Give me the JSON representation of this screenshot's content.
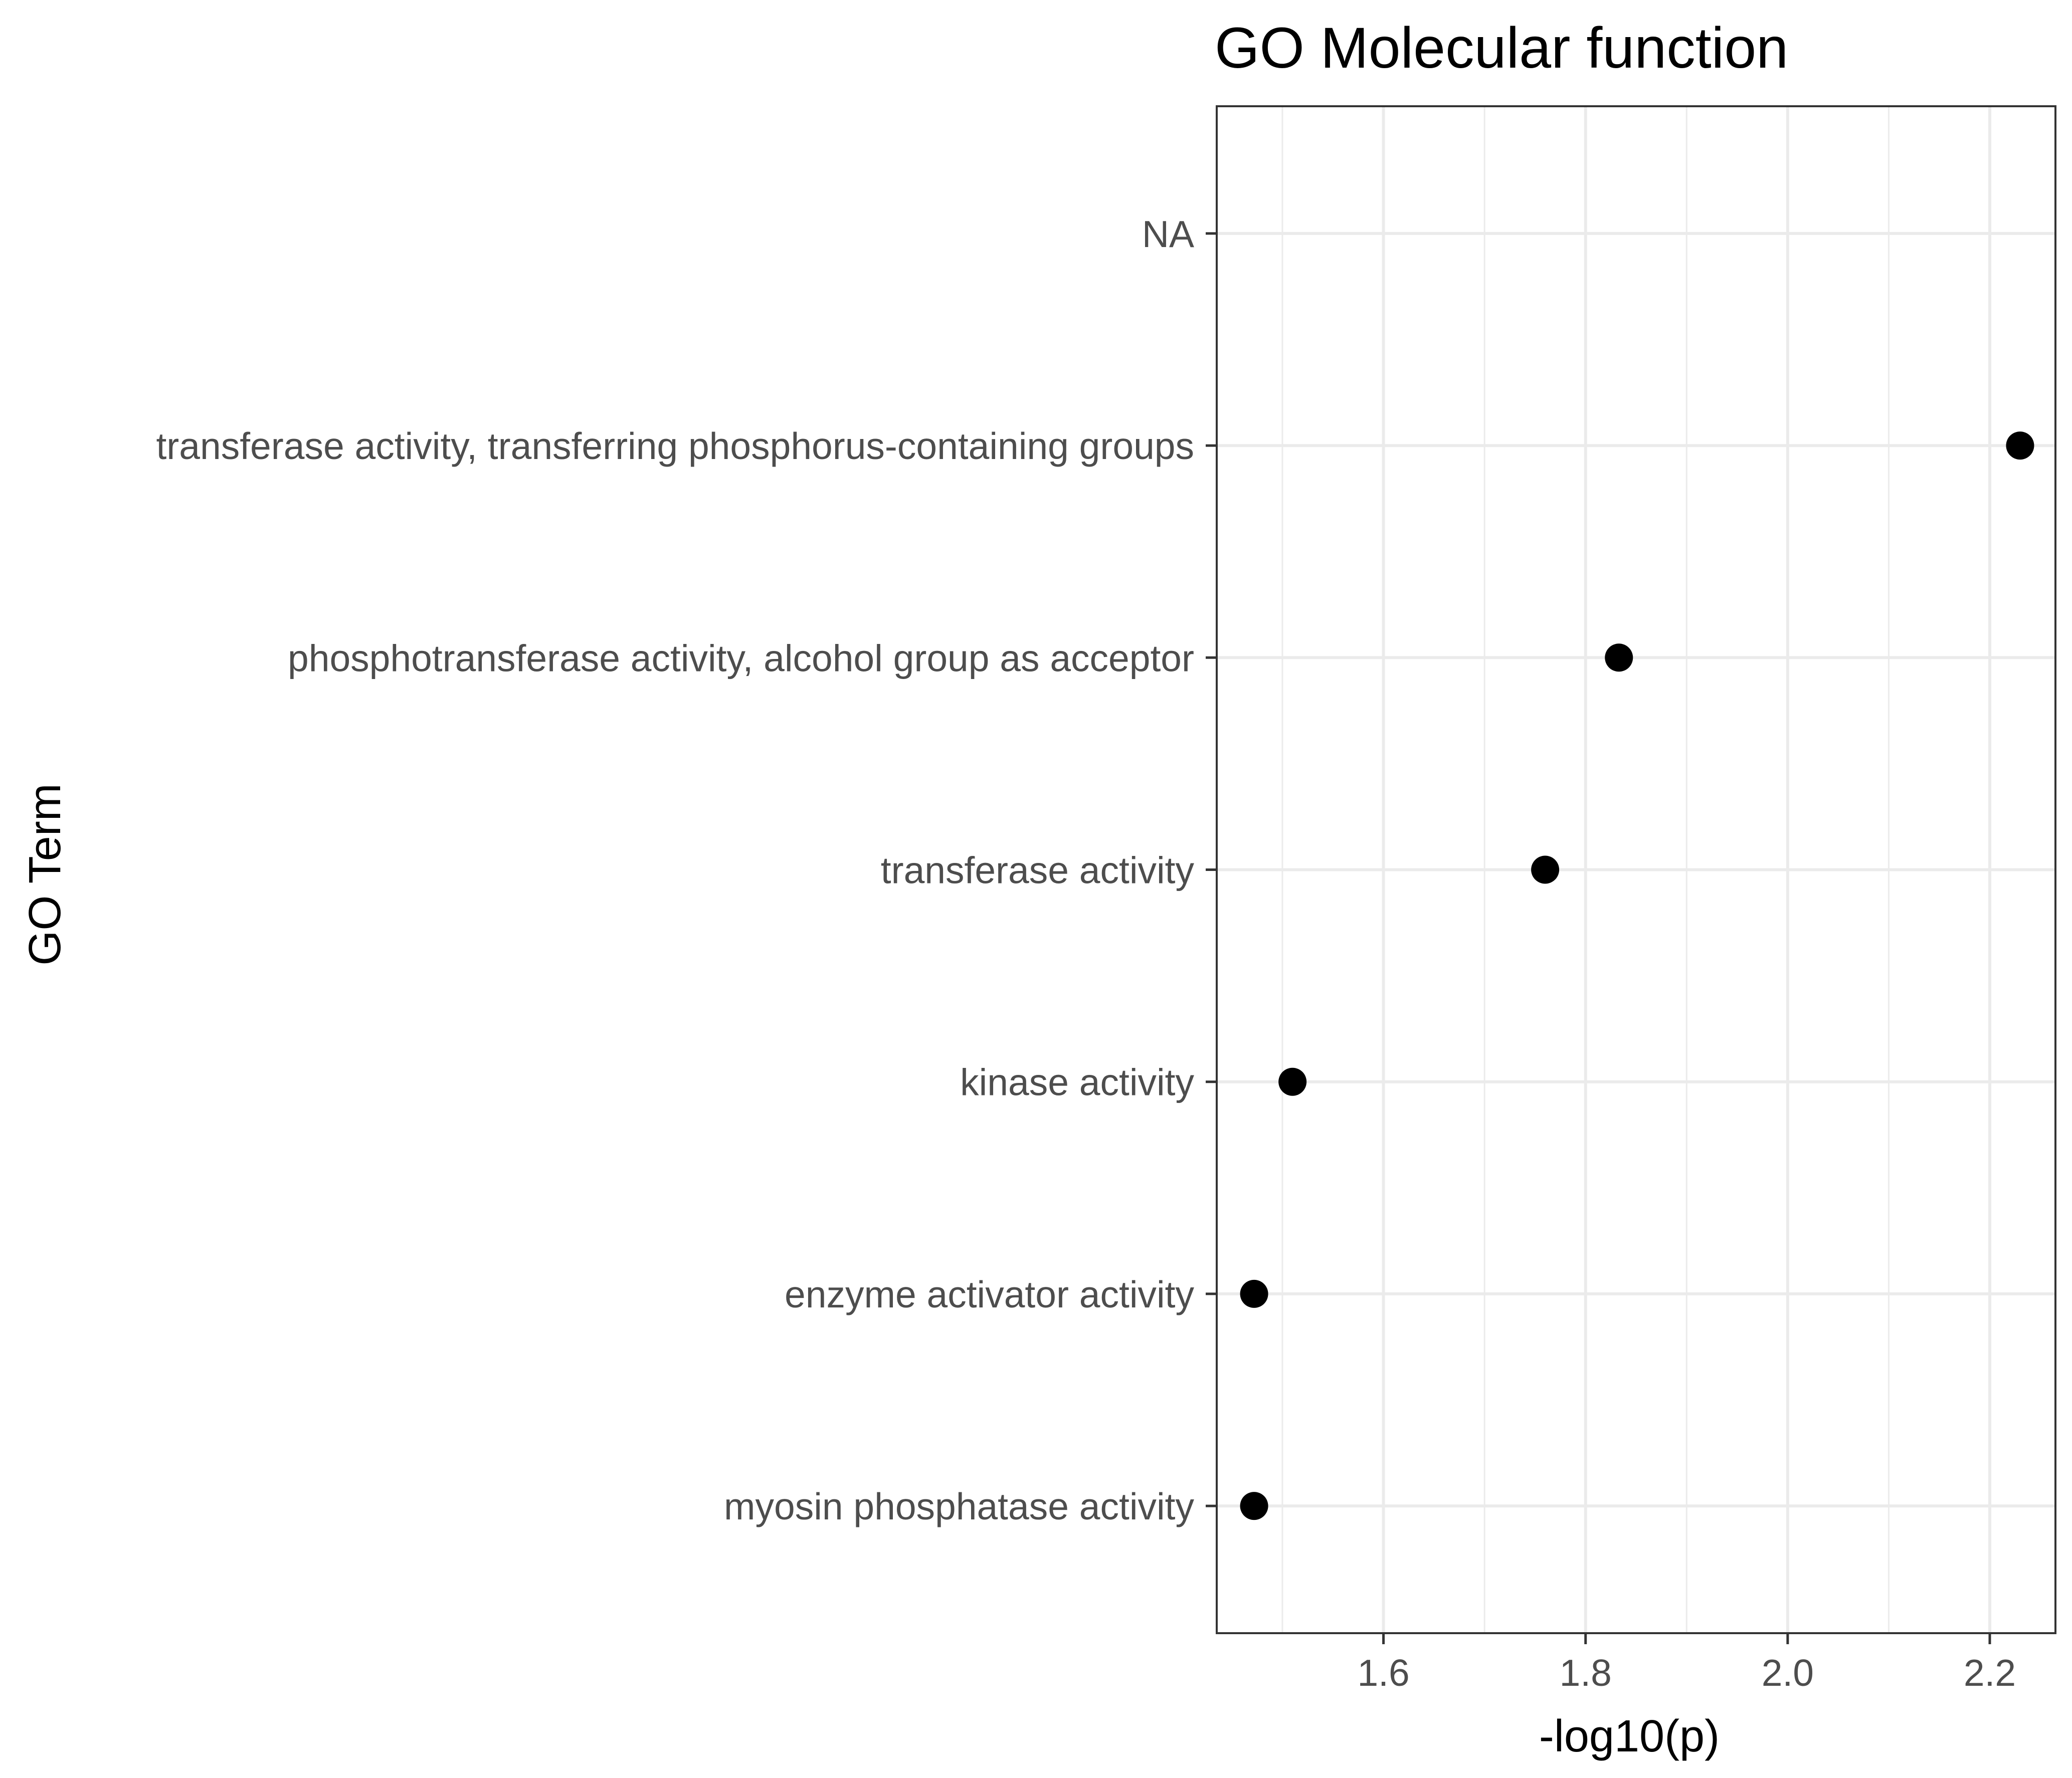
{
  "chart_data": {
    "type": "scatter",
    "title": "GO Molecular function",
    "xlabel": "-log10(p)",
    "ylabel": "GO Term",
    "xlim": [
      1.435,
      2.265
    ],
    "xticks": [
      "1.6",
      "1.8",
      "2.0",
      "2.2"
    ],
    "grid": true,
    "categories": [
      "NA",
      "transferase activity, transferring phosphorus-containing groups",
      "phosphotransferase activity, alcohol group as acceptor",
      "transferase activity",
      "kinase activity",
      "enzyme activator activity",
      "myosin phosphatase activity"
    ],
    "points": [
      {
        "category": "NA",
        "x": null
      },
      {
        "category": "transferase activity, transferring phosphorus-containing groups",
        "x": 2.23
      },
      {
        "category": "phosphotransferase activity, alcohol group as acceptor",
        "x": 1.833
      },
      {
        "category": "transferase activity",
        "x": 1.76
      },
      {
        "category": "kinase activity",
        "x": 1.51
      },
      {
        "category": "enzyme activator activity",
        "x": 1.472
      },
      {
        "category": "myosin phosphatase activity",
        "x": 1.472
      }
    ],
    "colors": {
      "point": "#000000",
      "grid": "#ebebeb",
      "panel_border": "#333333",
      "tick_text": "#4d4d4d"
    }
  }
}
